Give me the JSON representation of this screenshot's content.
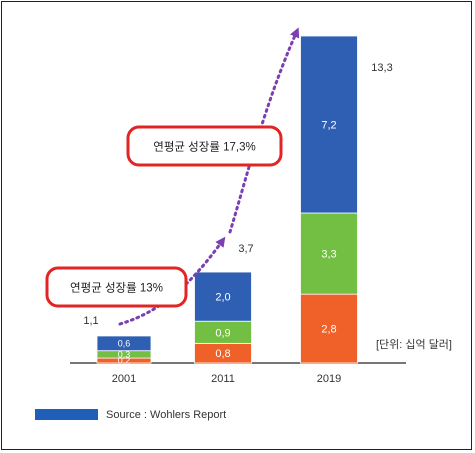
{
  "chart_data": {
    "type": "bar",
    "stacked": true,
    "categories": [
      "2001",
      "2011",
      "2019"
    ],
    "series": [
      {
        "segment": "bottom",
        "color": "#ef6128",
        "values": [
          0.2,
          0.8,
          2.8
        ]
      },
      {
        "segment": "middle",
        "color": "#72bf44",
        "values": [
          0.3,
          0.9,
          3.3
        ]
      },
      {
        "segment": "top",
        "color": "#2f5fb3",
        "values": [
          0.6,
          2.0,
          7.2
        ]
      }
    ],
    "value_labels": [
      [
        "0,2",
        "0,3",
        "0,6"
      ],
      [
        "0,8",
        "0,9",
        "2,0"
      ],
      [
        "2,8",
        "3,3",
        "7,2"
      ]
    ],
    "totals": [
      1.1,
      3.7,
      13.3
    ],
    "total_labels": [
      "1,1",
      "3,7",
      "13,3"
    ],
    "ylim": [
      0,
      13.3
    ],
    "grid": false,
    "annotations": [
      {
        "text": "연평균 성장률 13%",
        "from": "2001",
        "to": "2011"
      },
      {
        "text": "연평균 성장률 17,3%",
        "from": "2011",
        "to": "2019"
      }
    ],
    "unit_note": "[단위: 십억 달러]",
    "legend": {
      "label": "Source : Wohlers Report",
      "color": "#1f5fb8",
      "position": "bottom-left"
    },
    "title": "",
    "xlabel": "",
    "ylabel": ""
  }
}
